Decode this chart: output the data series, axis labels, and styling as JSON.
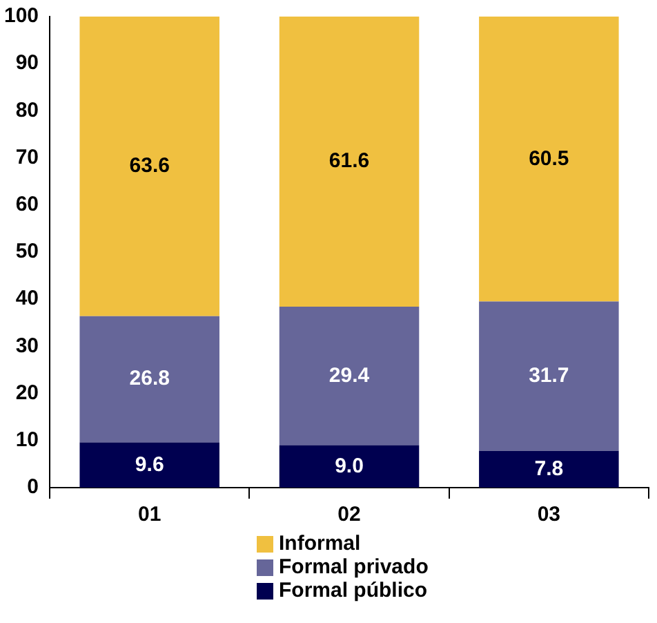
{
  "chart_data": {
    "type": "bar",
    "stacked": true,
    "categories": [
      "01",
      "02",
      "03"
    ],
    "series": [
      {
        "name": "Formal público",
        "color": "#000050",
        "values": [
          9.6,
          9.0,
          7.8
        ],
        "value_labels": [
          "9.6",
          "9.0",
          "7.8"
        ]
      },
      {
        "name": "Formal privado",
        "color": "#666699",
        "values": [
          26.8,
          29.4,
          31.7
        ],
        "value_labels": [
          "26.8",
          "29.4",
          "31.7"
        ]
      },
      {
        "name": "Informal",
        "color": "#f0c040",
        "values": [
          63.6,
          61.6,
          60.5
        ],
        "value_labels": [
          "63.6",
          "61.6",
          "60.5"
        ]
      }
    ],
    "ylim": [
      0,
      100
    ],
    "yticks": [
      0,
      10,
      20,
      30,
      40,
      50,
      60,
      70,
      80,
      90,
      100
    ],
    "grid": false,
    "legend": "bottom"
  }
}
